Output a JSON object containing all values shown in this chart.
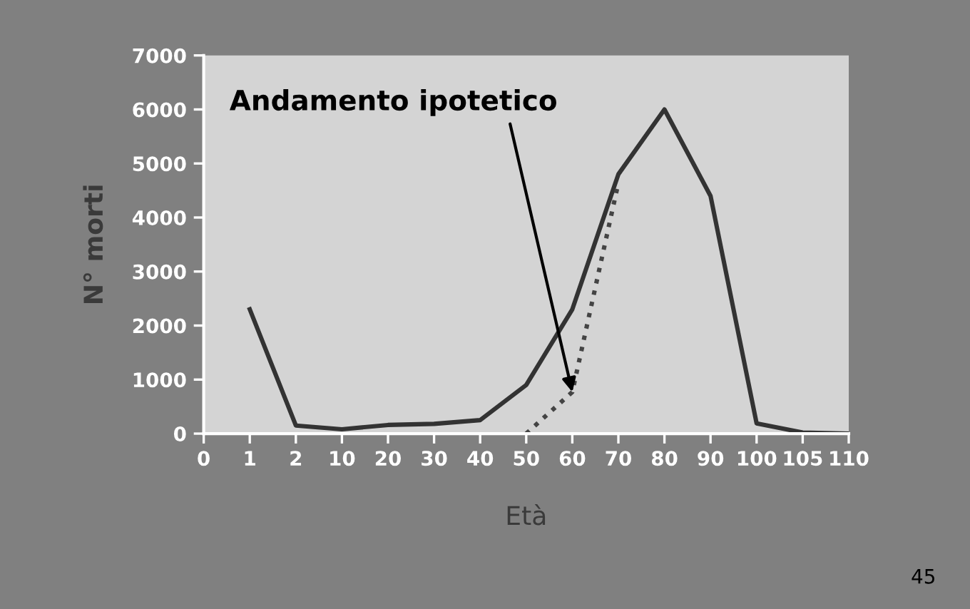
{
  "chart_data": {
    "type": "line",
    "xlabel": "Età",
    "ylabel": "N° morti",
    "categories": [
      "0",
      "1",
      "2",
      "10",
      "20",
      "30",
      "40",
      "50",
      "60",
      "70",
      "80",
      "90",
      "100",
      "105",
      "110"
    ],
    "ylim": [
      0,
      7000
    ],
    "yticks": [
      0,
      1000,
      2000,
      3000,
      4000,
      5000,
      6000,
      7000
    ],
    "grid": false,
    "legend": false,
    "series": [
      {
        "color": "#333333",
        "line_style": "solid",
        "values": [
          null,
          2300,
          150,
          80,
          160,
          180,
          250,
          900,
          2300,
          4800,
          6000,
          4400,
          190,
          20,
          0
        ]
      },
      {
        "color": "#444444",
        "line_style": "dotted",
        "values": [
          null,
          null,
          null,
          null,
          null,
          null,
          null,
          0,
          770,
          4640,
          null,
          null,
          null,
          null,
          null
        ]
      }
    ],
    "annotations": [
      {
        "text": "Andamento ipotetico",
        "x": "60",
        "y": 770
      },
      "45"
    ]
  }
}
